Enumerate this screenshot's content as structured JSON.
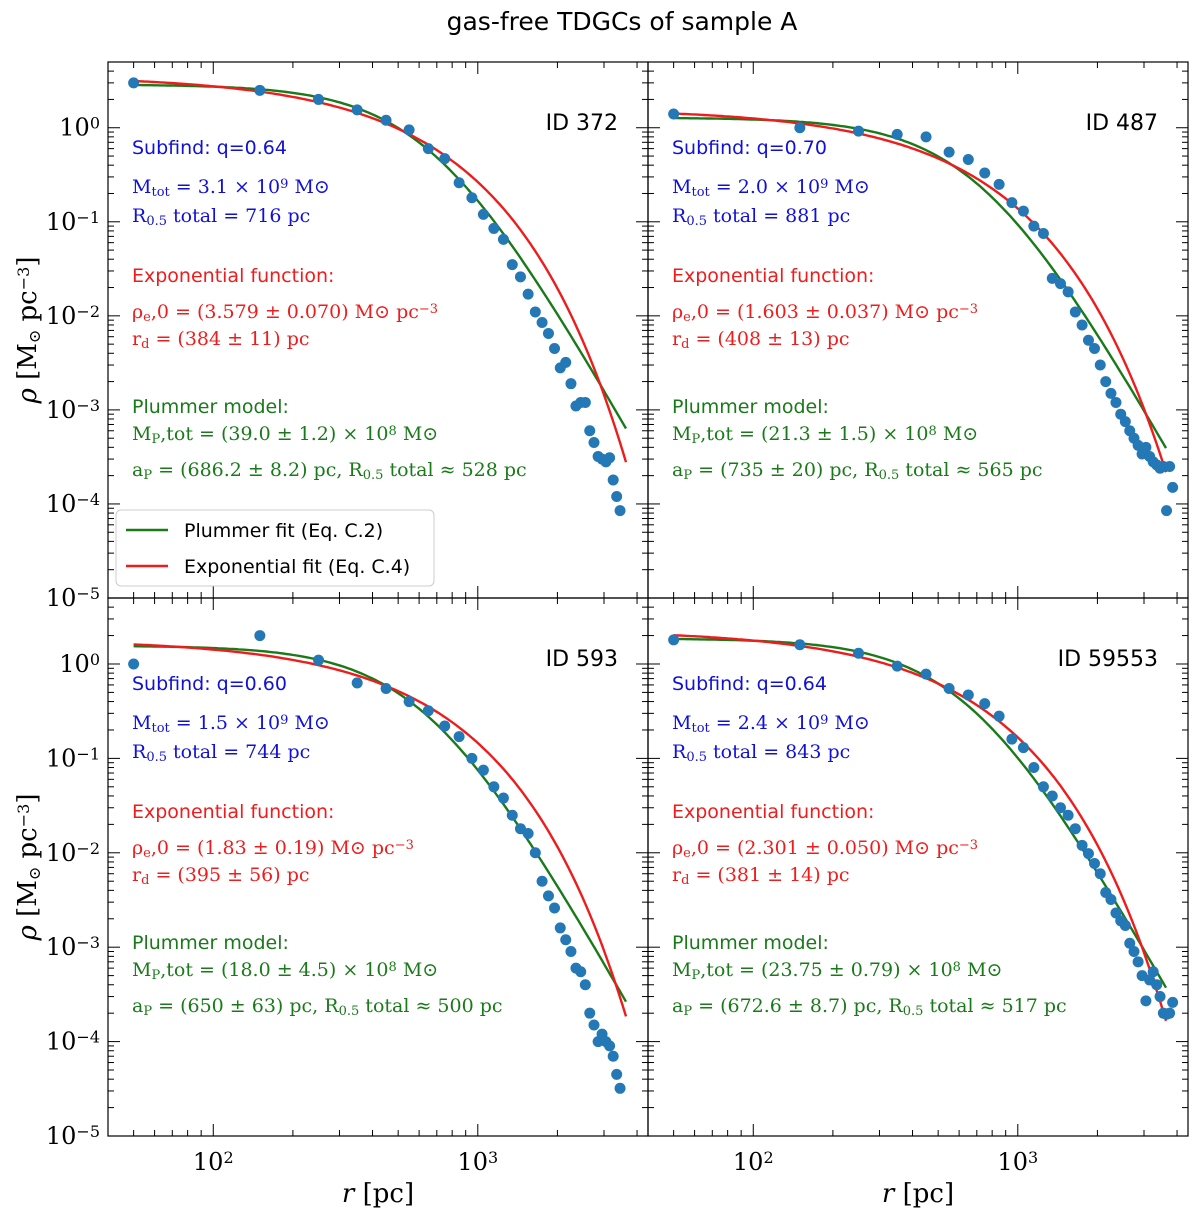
{
  "figure_title": "gas-free TDGCs of sample A",
  "colors": {
    "plummer": "#1a7a1a",
    "exponential": "#ee1c1c",
    "points": "#2378b5",
    "subfind": "#1010d8"
  },
  "chart_data": [
    {
      "type": "scatter",
      "panel_id": "ID 372",
      "xscale": "log",
      "yscale": "log",
      "xlim": [
        40,
        4400
      ],
      "ylim": [
        1e-05,
        5
      ],
      "xlabel": "r [pc]",
      "ylabel": "ρ [M⊙ pc⁻³]",
      "annotations": {
        "subfind": "Subfind: q=0.64",
        "mtot": "M_tot = 3.1 × 10^9 M⊙",
        "rhalf": "R_0.5 total = 716 pc",
        "exp_header": "Exponential function:",
        "exp_rho": "ρ_e,0 = (3.579 ± 0.070) M⊙ pc^−3",
        "exp_rd": "r_d = (384 ± 11) pc",
        "plum_header": "Plummer model:",
        "plum_m": "M_P,tot = (39.0 ± 1.2) × 10^8 M⊙",
        "plum_a": "a_P = (686.2 ± 8.2) pc, R_0.5 total ≈ 528 pc"
      },
      "points": {
        "x": [
          50,
          150,
          250,
          350,
          450,
          550,
          650,
          750,
          850,
          950,
          1050,
          1150,
          1250,
          1350,
          1450,
          1550,
          1650,
          1750,
          1850,
          1950,
          2050,
          2150,
          2250,
          2350,
          2450,
          2550,
          2650,
          2750,
          2850,
          2950,
          3050,
          3150,
          3250,
          3350,
          3450
        ],
        "y": [
          3.0,
          2.5,
          2.0,
          1.55,
          1.2,
          0.95,
          0.6,
          0.47,
          0.26,
          0.18,
          0.12,
          0.085,
          0.065,
          0.035,
          0.026,
          0.017,
          0.011,
          0.0085,
          0.0065,
          0.0045,
          0.0028,
          0.0032,
          0.0019,
          0.0011,
          0.0012,
          0.0012,
          0.0006,
          0.00045,
          0.00032,
          0.0003,
          0.00028,
          0.00031,
          0.00018,
          0.00012,
          8.5e-05
        ]
      },
      "plummer_fit": {
        "M_tot": 3900000000.0,
        "a": 686.2
      },
      "exponential_fit": {
        "rho0": 3.579,
        "rd": 384
      }
    },
    {
      "type": "scatter",
      "panel_id": "ID 487",
      "xscale": "log",
      "yscale": "log",
      "xlim": [
        40,
        4400
      ],
      "ylim": [
        1e-05,
        5
      ],
      "xlabel": "r [pc]",
      "ylabel": "ρ [M⊙ pc⁻³]",
      "annotations": {
        "subfind": "Subfind: q=0.70",
        "mtot": "M_tot = 2.0 × 10^9 M⊙",
        "rhalf": "R_0.5 total = 881 pc",
        "exp_header": "Exponential function:",
        "exp_rho": "ρ_e,0 = (1.603 ± 0.037) M⊙ pc^−3",
        "exp_rd": "r_d = (408 ± 13) pc",
        "plum_header": "Plummer model:",
        "plum_m": "M_P,tot = (21.3 ± 1.5) × 10^8 M⊙",
        "plum_a": "a_P = (735 ± 20) pc, R_0.5 total ≈ 565 pc"
      },
      "points": {
        "x": [
          50,
          150,
          250,
          350,
          450,
          550,
          650,
          750,
          850,
          950,
          1050,
          1150,
          1250,
          1350,
          1450,
          1550,
          1650,
          1750,
          1850,
          1950,
          2050,
          2150,
          2250,
          2350,
          2450,
          2550,
          2650,
          2750,
          2850,
          2950,
          3050,
          3150,
          3250,
          3350,
          3450,
          3550,
          3650,
          3750,
          3850
        ],
        "y": [
          1.4,
          1.0,
          0.92,
          0.85,
          0.8,
          0.55,
          0.46,
          0.33,
          0.25,
          0.16,
          0.13,
          0.09,
          0.075,
          0.025,
          0.022,
          0.018,
          0.011,
          0.008,
          0.0055,
          0.0045,
          0.003,
          0.002,
          0.0015,
          0.0012,
          0.0009,
          0.00075,
          0.0006,
          0.0005,
          0.00042,
          0.00034,
          0.0004,
          0.00032,
          0.00028,
          0.00026,
          0.00024,
          0.00025,
          8.5e-05,
          0.00025,
          0.00015
        ]
      },
      "plummer_fit": {
        "M_tot": 2130000000.0,
        "a": 735
      },
      "exponential_fit": {
        "rho0": 1.603,
        "rd": 408
      }
    },
    {
      "type": "scatter",
      "panel_id": "ID 593",
      "xscale": "log",
      "yscale": "log",
      "xlim": [
        40,
        4400
      ],
      "ylim": [
        1e-05,
        5
      ],
      "xlabel": "r [pc]",
      "ylabel": "ρ [M⊙ pc⁻³]",
      "annotations": {
        "subfind": "Subfind: q=0.60",
        "mtot": "M_tot = 1.5 × 10^9 M⊙",
        "rhalf": "R_0.5 total = 744 pc",
        "exp_header": "Exponential function:",
        "exp_rho": "ρ_e,0 = (1.83 ± 0.19) M⊙ pc^−3",
        "exp_rd": "r_d = (395 ± 56) pc",
        "plum_header": "Plummer model:",
        "plum_m": "M_P,tot = (18.0 ± 4.5) × 10^8 M⊙",
        "plum_a": "a_P = (650 ± 63) pc, R_0.5 total ≈ 500 pc"
      },
      "points": {
        "x": [
          50,
          150,
          250,
          350,
          450,
          550,
          650,
          750,
          850,
          950,
          1050,
          1150,
          1250,
          1350,
          1450,
          1550,
          1650,
          1750,
          1850,
          1950,
          2050,
          2150,
          2250,
          2350,
          2450,
          2550,
          2650,
          2750,
          2850,
          2950,
          3050,
          3150,
          3250,
          3350,
          3450
        ],
        "y": [
          1.0,
          2.0,
          1.1,
          0.63,
          0.55,
          0.4,
          0.32,
          0.22,
          0.17,
          0.1,
          0.075,
          0.05,
          0.038,
          0.025,
          0.018,
          0.016,
          0.01,
          0.005,
          0.0035,
          0.0026,
          0.0016,
          0.0012,
          0.0009,
          0.0006,
          0.00055,
          0.0004,
          0.0002,
          0.00015,
          0.0001,
          0.00012,
          0.0001,
          9e-05,
          7e-05,
          4.5e-05,
          3.2e-05
        ]
      },
      "plummer_fit": {
        "M_tot": 1800000000.0,
        "a": 650
      },
      "exponential_fit": {
        "rho0": 1.83,
        "rd": 395
      }
    },
    {
      "type": "scatter",
      "panel_id": "ID 59553",
      "xscale": "log",
      "yscale": "log",
      "xlim": [
        40,
        4400
      ],
      "ylim": [
        1e-05,
        5
      ],
      "xlabel": "r [pc]",
      "ylabel": "ρ [M⊙ pc⁻³]",
      "annotations": {
        "subfind": "Subfind: q=0.64",
        "mtot": "M_tot = 2.4 × 10^9 M⊙",
        "rhalf": "R_0.5 total = 843 pc",
        "exp_header": "Exponential function:",
        "exp_rho": "ρ_e,0 = (2.301 ± 0.050) M⊙ pc^−3",
        "exp_rd": "r_d = (381 ± 14) pc",
        "plum_header": "Plummer model:",
        "plum_m": "M_P,tot = (23.75 ± 0.79) × 10^8 M⊙",
        "plum_a": "a_P = (672.6 ± 8.7) pc, R_0.5 total ≈ 517 pc"
      },
      "points": {
        "x": [
          50,
          150,
          250,
          350,
          450,
          550,
          650,
          750,
          850,
          950,
          1050,
          1150,
          1250,
          1350,
          1450,
          1550,
          1650,
          1750,
          1850,
          1950,
          2050,
          2150,
          2250,
          2350,
          2450,
          2550,
          2650,
          2750,
          2850,
          2950,
          3050,
          3150,
          3250,
          3350,
          3450,
          3550,
          3650,
          3750,
          3850
        ],
        "y": [
          1.8,
          1.6,
          1.3,
          0.95,
          0.78,
          0.55,
          0.47,
          0.38,
          0.28,
          0.16,
          0.13,
          0.08,
          0.05,
          0.04,
          0.03,
          0.025,
          0.018,
          0.012,
          0.0098,
          0.0077,
          0.006,
          0.0038,
          0.0032,
          0.0023,
          0.0019,
          0.0017,
          0.0011,
          0.0009,
          0.0007,
          0.0005,
          0.00027,
          0.00045,
          0.00055,
          0.0004,
          0.0003,
          0.0002,
          0.000195,
          0.0002,
          0.00026
        ]
      },
      "plummer_fit": {
        "M_tot": 2375000000.0,
        "a": 672.6
      },
      "exponential_fit": {
        "rho0": 2.301,
        "rd": 381
      }
    }
  ],
  "legend": {
    "plummer_label": "Plummer fit (Eq. C.2)",
    "exponential_label": "Exponential fit (Eq. C.4)"
  },
  "ticks": {
    "y": [
      "10^0",
      "10^-1",
      "10^-2",
      "10^-3",
      "10^-4",
      "10^-5"
    ],
    "x": [
      "10^2",
      "10^3"
    ]
  }
}
